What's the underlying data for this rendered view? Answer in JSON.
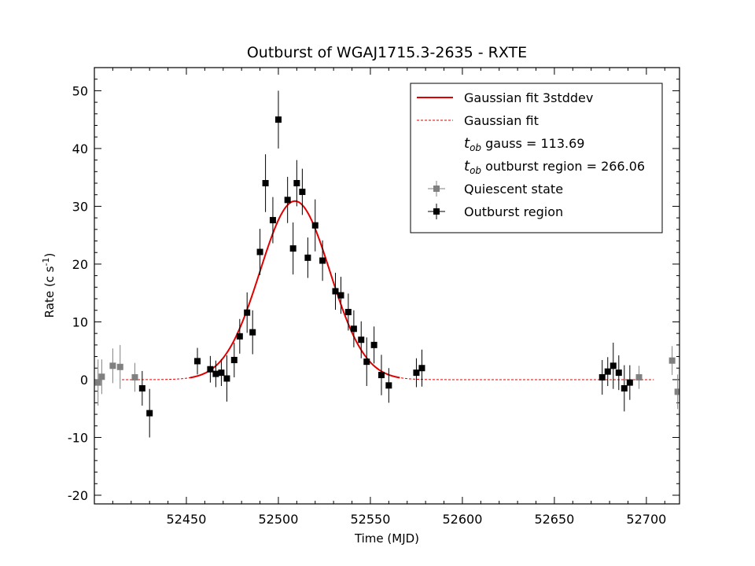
{
  "chart_data": {
    "type": "scatter",
    "title": "Outburst of WGAJ1715.3-2635 - RXTE",
    "xlabel": "Time (MJD)",
    "ylabel": "Rate (c s",
    "ylabel_sup": "-1",
    "ylabel_close": ")",
    "xlim": [
      52400,
      52718
    ],
    "ylim": [
      -21.5,
      54
    ],
    "xticks": [
      52450,
      52500,
      52550,
      52600,
      52650,
      52700
    ],
    "yticks": [
      -20,
      -10,
      0,
      10,
      20,
      30,
      40,
      50
    ],
    "legend_position": "top-right",
    "legend": [
      {
        "kind": "line-solid",
        "color": "#e00000",
        "label": "Gaussian fit 3stddev"
      },
      {
        "kind": "line-dashed",
        "color": "#e00000",
        "label": "Gaussian fit"
      },
      {
        "kind": "text",
        "sym": "t",
        "sub": "ob",
        "label": " gauss = 113.69"
      },
      {
        "kind": "text",
        "sym": "t",
        "sub": "ob",
        "label": " outburst region = 266.06"
      },
      {
        "kind": "marker",
        "color": "#808080",
        "label": "Quiescent state"
      },
      {
        "kind": "marker",
        "color": "#000000",
        "label": "Outburst region"
      }
    ],
    "fit": {
      "amplitude": 30.9,
      "center": 52509,
      "sigma": 19,
      "solid_range": [
        52452,
        52566
      ],
      "dashed_range": [
        52415,
        52704
      ],
      "color": "#e00000"
    },
    "series": [
      {
        "name": "Quiescent state",
        "color": "#808080",
        "points": [
          {
            "x": 52402,
            "y": -0.5,
            "err": 4.0
          },
          {
            "x": 52404,
            "y": 0.5,
            "err": 3.0
          },
          {
            "x": 52410,
            "y": 2.4,
            "err": 3.0
          },
          {
            "x": 52414,
            "y": 2.2,
            "err": 3.8
          },
          {
            "x": 52422,
            "y": 0.4,
            "err": 2.5
          },
          {
            "x": 52696,
            "y": 0.4,
            "err": 2.0
          },
          {
            "x": 52714,
            "y": 3.3,
            "err": 2.5
          },
          {
            "x": 52717,
            "y": -2.1,
            "err": 3.0
          }
        ]
      },
      {
        "name": "Outburst region",
        "color": "#000000",
        "points": [
          {
            "x": 52426,
            "y": -1.5,
            "err": 3.0
          },
          {
            "x": 52430,
            "y": -5.8,
            "err": 4.2
          },
          {
            "x": 52456,
            "y": 3.2,
            "err": 2.3
          },
          {
            "x": 52463,
            "y": 1.8,
            "err": 2.3
          },
          {
            "x": 52466,
            "y": 1.0,
            "err": 2.3
          },
          {
            "x": 52469,
            "y": 1.2,
            "err": 2.3
          },
          {
            "x": 52472,
            "y": 0.2,
            "err": 4.0
          },
          {
            "x": 52476,
            "y": 3.4,
            "err": 3.0
          },
          {
            "x": 52479,
            "y": 7.5,
            "err": 3.0
          },
          {
            "x": 52483,
            "y": 11.6,
            "err": 3.5
          },
          {
            "x": 52486,
            "y": 8.2,
            "err": 3.8
          },
          {
            "x": 52490,
            "y": 22.1,
            "err": 4.0
          },
          {
            "x": 52493,
            "y": 34.0,
            "err": 5.0
          },
          {
            "x": 52497,
            "y": 27.6,
            "err": 4.0
          },
          {
            "x": 52500,
            "y": 45.0,
            "err": 5.0
          },
          {
            "x": 52505,
            "y": 31.1,
            "err": 4.0
          },
          {
            "x": 52508,
            "y": 22.7,
            "err": 4.5
          },
          {
            "x": 52510,
            "y": 34.0,
            "err": 4.0
          },
          {
            "x": 52513,
            "y": 32.5,
            "err": 4.0
          },
          {
            "x": 52516,
            "y": 21.1,
            "err": 3.5
          },
          {
            "x": 52520,
            "y": 26.7,
            "err": 4.5
          },
          {
            "x": 52524,
            "y": 20.6,
            "err": 3.5
          },
          {
            "x": 52531,
            "y": 15.3,
            "err": 3.2
          },
          {
            "x": 52534,
            "y": 14.6,
            "err": 3.2
          },
          {
            "x": 52538,
            "y": 11.7,
            "err": 3.2
          },
          {
            "x": 52541,
            "y": 8.8,
            "err": 3.2
          },
          {
            "x": 52545,
            "y": 6.9,
            "err": 3.2
          },
          {
            "x": 52548,
            "y": 3.1,
            "err": 4.2
          },
          {
            "x": 52552,
            "y": 6.0,
            "err": 3.2
          },
          {
            "x": 52556,
            "y": 0.8,
            "err": 3.5
          },
          {
            "x": 52560,
            "y": -1.0,
            "err": 3.0
          },
          {
            "x": 52575,
            "y": 1.2,
            "err": 2.5
          },
          {
            "x": 52578,
            "y": 2.0,
            "err": 3.2
          },
          {
            "x": 52676,
            "y": 0.4,
            "err": 3.0
          },
          {
            "x": 52679,
            "y": 1.4,
            "err": 2.5
          },
          {
            "x": 52682,
            "y": 2.4,
            "err": 4.0
          },
          {
            "x": 52685,
            "y": 1.2,
            "err": 3.0
          },
          {
            "x": 52688,
            "y": -1.5,
            "err": 4.0
          },
          {
            "x": 52691,
            "y": -0.5,
            "err": 3.0
          }
        ]
      }
    ]
  }
}
